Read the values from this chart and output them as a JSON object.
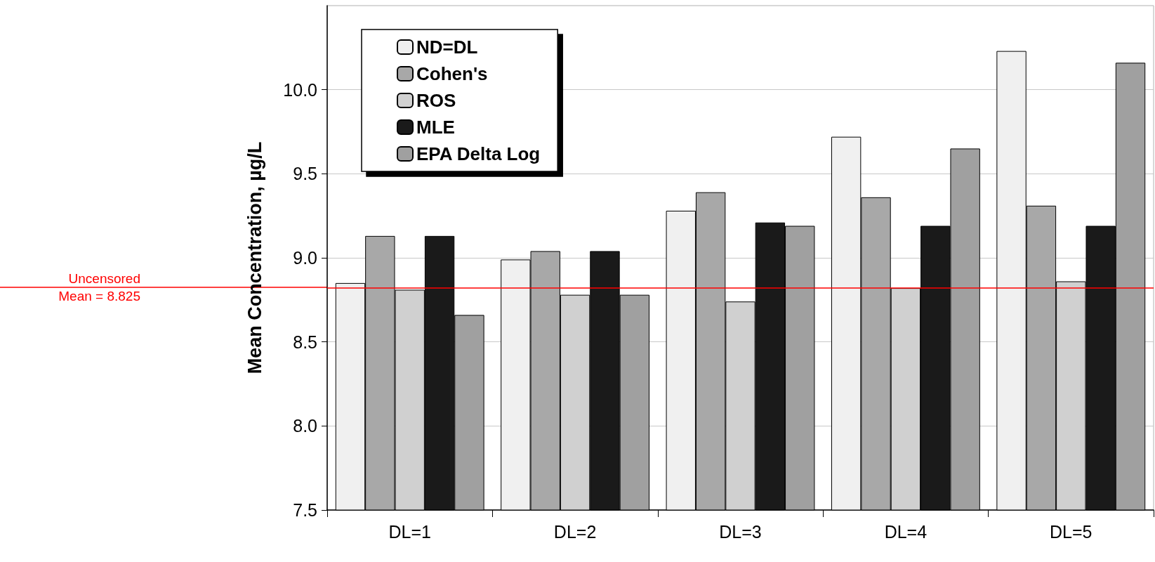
{
  "chart_data": {
    "type": "bar",
    "ylabel": "Mean Concentration, µg/L",
    "categories": [
      "DL=1",
      "DL=2",
      "DL=3",
      "DL=4",
      "DL=5"
    ],
    "series": [
      {
        "name": "ND=DL",
        "color": "#f0f0f0",
        "values": [
          8.85,
          8.99,
          9.28,
          9.72,
          10.23
        ]
      },
      {
        "name": "Cohen's",
        "color": "#a8a8a8",
        "values": [
          9.13,
          9.04,
          9.39,
          9.36,
          9.31
        ]
      },
      {
        "name": "ROS",
        "color": "#d0d0d0",
        "values": [
          8.81,
          8.78,
          8.74,
          8.82,
          8.86
        ]
      },
      {
        "name": "MLE",
        "color": "#1a1a1a",
        "values": [
          9.13,
          9.04,
          9.21,
          9.19,
          9.19
        ]
      },
      {
        "name": "EPA Delta Log",
        "color": "#a0a0a0",
        "values": [
          8.66,
          8.78,
          9.19,
          9.65,
          10.16
        ]
      }
    ],
    "ylim": [
      7.5,
      10.5
    ],
    "yticks": [
      7.5,
      {
        "value": 8,
        "label": "8.0"
      },
      8.5,
      {
        "value": 9,
        "label": "9.0"
      },
      9.5,
      {
        "value": 10,
        "label": "10.0"
      }
    ],
    "grid": "y",
    "legend": "top left",
    "ref_lines": [
      {
        "axis": "y",
        "value": 8.825,
        "label": "Uncensored\nMean = 8.825",
        "color": "#ff0000"
      }
    ]
  }
}
